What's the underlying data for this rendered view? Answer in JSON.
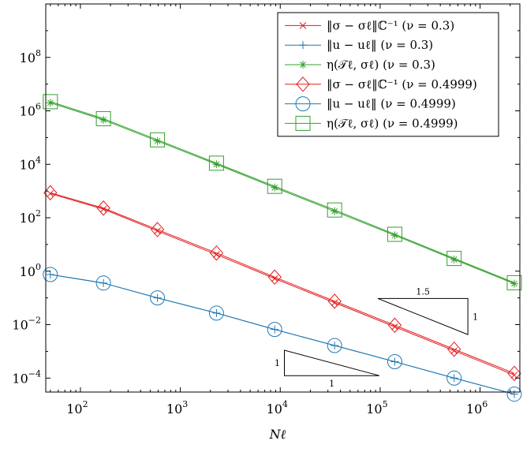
{
  "colors": {
    "red": "#e31a1c",
    "blue": "#1f78b4",
    "green": "#33a02c",
    "axis": "#000000",
    "background": "#ffffff"
  },
  "chart_data": {
    "type": "line",
    "xscale": "log",
    "yscale": "log",
    "xlabel": "Nℓ",
    "ylabel": "",
    "title": "",
    "xlim": [
      45,
      2500000
    ],
    "ylim": [
      3e-05,
      10000000000
    ],
    "x_ticks": [
      100,
      1000,
      10000,
      100000,
      1000000
    ],
    "y_ticks": [
      0.0001,
      0.01,
      1,
      100,
      10000,
      1000000,
      100000000
    ],
    "x_tick_labels": [
      {
        "base": "10",
        "exp": "2"
      },
      {
        "base": "10",
        "exp": "3"
      },
      {
        "base": "10",
        "exp": "4"
      },
      {
        "base": "10",
        "exp": "5"
      },
      {
        "base": "10",
        "exp": "6"
      }
    ],
    "y_tick_labels": [
      {
        "base": "10",
        "exp": "−4"
      },
      {
        "base": "10",
        "exp": "−2"
      },
      {
        "base": "10",
        "exp": "0"
      },
      {
        "base": "10",
        "exp": "2"
      },
      {
        "base": "10",
        "exp": "4"
      },
      {
        "base": "10",
        "exp": "6"
      },
      {
        "base": "10",
        "exp": "8"
      }
    ],
    "grid": false,
    "legend_position": "top-right",
    "x": [
      50,
      170,
      590,
      2300,
      8800,
      35000,
      140000,
      550000,
      2200000
    ],
    "series": [
      {
        "name": "‖σ − σℓ‖ℂ⁻¹ (ν = 0.3)",
        "color": "red",
        "marker": "x",
        "values": [
          800,
          210,
          32,
          4.2,
          0.53,
          0.066,
          0.0083,
          0.00105,
          0.00013
        ]
      },
      {
        "name": "‖u − uℓ‖ (ν = 0.3)",
        "color": "blue",
        "marker": "plus",
        "values": [
          0.75,
          0.36,
          0.1,
          0.027,
          0.0066,
          0.00165,
          0.00041,
          0.0001,
          2.5e-05
        ]
      },
      {
        "name": "η(𝒯ℓ, σℓ) (ν = 0.3)",
        "color": "green",
        "marker": "star",
        "values": [
          2000000,
          460000,
          74000,
          10000,
          1350,
          175,
          22,
          2.75,
          0.34
        ]
      },
      {
        "name": "‖σ − σℓ‖ℂ⁻¹ (ν = 0.4999)",
        "color": "red",
        "marker": "diamond",
        "values": [
          860,
          230,
          36,
          4.8,
          0.6,
          0.075,
          0.0095,
          0.0012,
          0.00015
        ]
      },
      {
        "name": "‖u − uℓ‖ (ν = 0.4999)",
        "color": "blue",
        "marker": "circle",
        "values": [
          0.75,
          0.36,
          0.1,
          0.027,
          0.0066,
          0.00165,
          0.00041,
          0.0001,
          2.5e-05
        ]
      },
      {
        "name": "η(𝒯ℓ, σℓ) (ν = 0.4999)",
        "color": "green",
        "marker": "square",
        "values": [
          2200000,
          510000,
          82000,
          11000,
          1500,
          195,
          24,
          3.0,
          0.37
        ]
      }
    ],
    "slope_triangles": [
      {
        "slope": 1.5,
        "run_label": "1.5",
        "rise_label": "1",
        "corner_x": 95000,
        "corner_y": 0.095,
        "run_decades": 0.9
      },
      {
        "slope": 1,
        "run_label": "1",
        "rise_label": "1",
        "corner_x": 11000,
        "corner_y": 0.0011,
        "run_decades": 0.95
      }
    ]
  }
}
